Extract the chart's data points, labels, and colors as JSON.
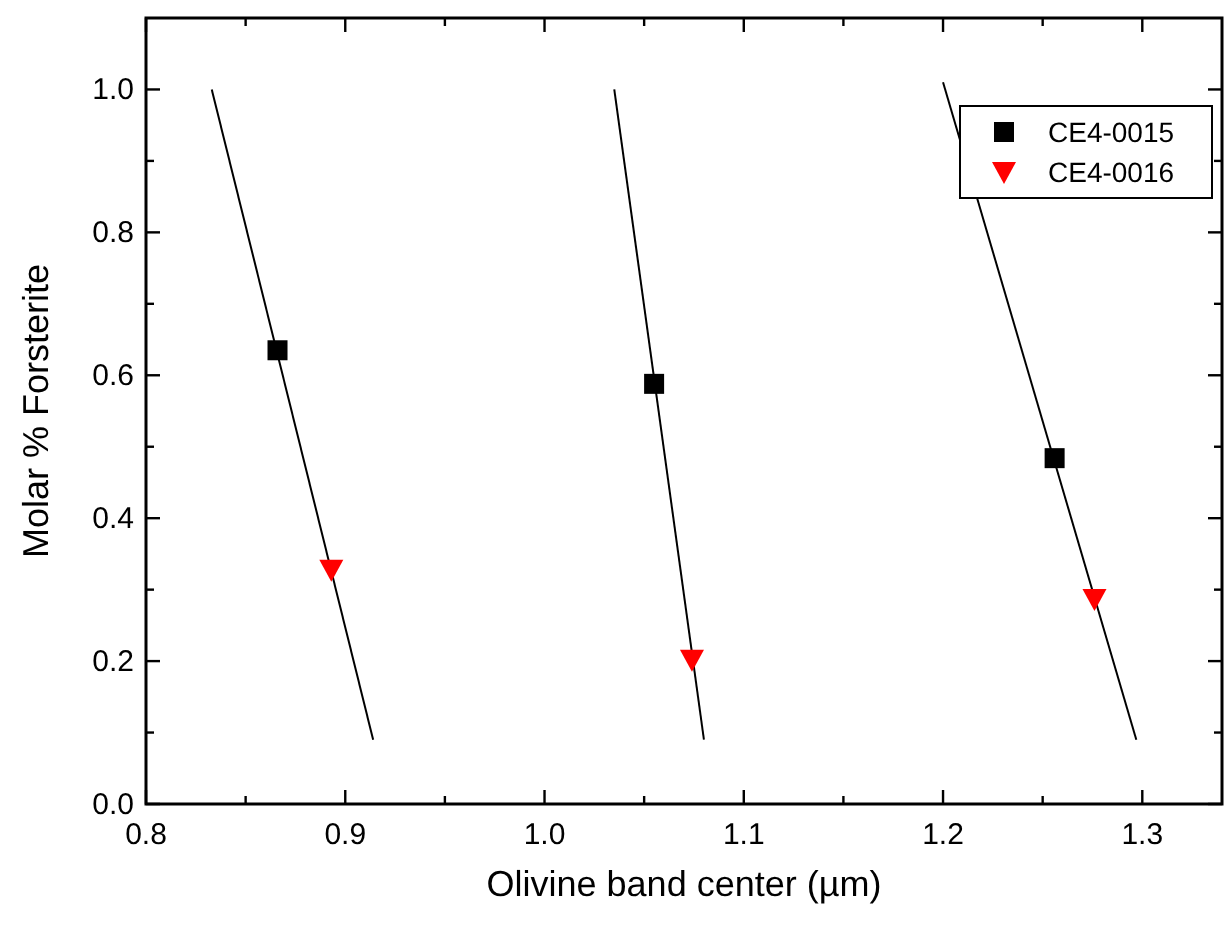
{
  "chart_data": {
    "type": "scatter",
    "xlabel": "Olivine band center (µm)",
    "ylabel": "Molar % Forsterite",
    "xlim": [
      0.8,
      1.34
    ],
    "ylim": [
      0,
      1.1
    ],
    "xticks": [
      {
        "value": 0.8,
        "label": "0.8"
      },
      {
        "value": 0.85,
        "label": null
      },
      {
        "value": 0.9,
        "label": "0.9"
      },
      {
        "value": 0.95,
        "label": null
      },
      {
        "value": 1.0,
        "label": "1.0"
      },
      {
        "value": 1.05,
        "label": null
      },
      {
        "value": 1.1,
        "label": "1.1"
      },
      {
        "value": 1.15,
        "label": null
      },
      {
        "value": 1.2,
        "label": "1.2"
      },
      {
        "value": 1.25,
        "label": null
      },
      {
        "value": 1.3,
        "label": "1.3"
      }
    ],
    "yticks": [
      {
        "value": 0,
        "label": "0.0"
      },
      {
        "value": 0.1,
        "label": null
      },
      {
        "value": 0.2,
        "label": "0.2"
      },
      {
        "value": 0.3,
        "label": null
      },
      {
        "value": 0.4,
        "label": "0.4"
      },
      {
        "value": 0.5,
        "label": null
      },
      {
        "value": 0.6,
        "label": "0.6"
      },
      {
        "value": 0.7,
        "label": null
      },
      {
        "value": 0.8,
        "label": "0.8"
      },
      {
        "value": 0.9,
        "label": null
      },
      {
        "value": 1.0,
        "label": "1.0"
      }
    ],
    "grid": false,
    "legend": "top right",
    "series": [
      {
        "type": "line",
        "color": "#000000",
        "marker": "none",
        "x": [
          0.833,
          0.914
        ],
        "values": [
          1.0,
          0.09
        ]
      },
      {
        "type": "line",
        "color": "#000000",
        "marker": "none",
        "x": [
          1.035,
          1.08
        ],
        "values": [
          1.0,
          0.09
        ]
      },
      {
        "type": "line",
        "color": "#000000",
        "marker": "none",
        "x": [
          1.2,
          1.297
        ],
        "values": [
          1.01,
          0.09
        ]
      },
      {
        "name": "CE4-0015",
        "color": "#000000",
        "marker": "square",
        "x": [
          0.866,
          1.055,
          1.256
        ],
        "values": [
          0.635,
          0.588,
          0.484
        ]
      },
      {
        "name": "CE4-0016",
        "color": "#ff0000",
        "marker": "triangle",
        "x": [
          0.893,
          1.074,
          1.276
        ],
        "values": [
          0.328,
          0.202,
          0.287
        ]
      }
    ]
  }
}
